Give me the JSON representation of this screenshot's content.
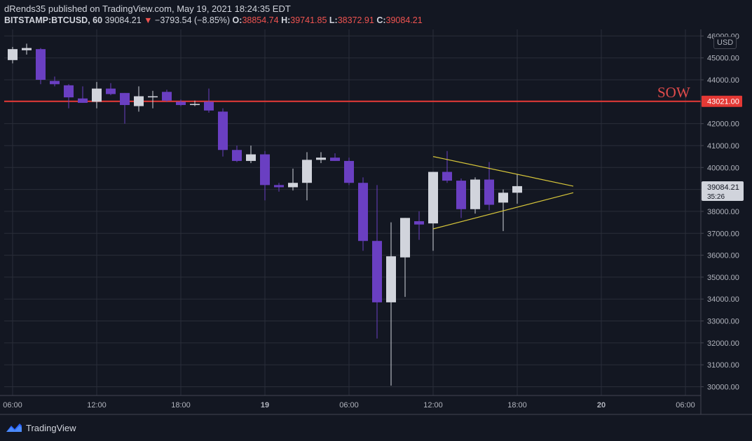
{
  "header": {
    "line1": "dRends35 published on TradingView.com, May 19, 2021 18:24:35 EDT",
    "symbol": "BITSTAMP:BTCUSD, 60",
    "last": "39084.21",
    "change_arrow": "▼",
    "change": "−3793.54 (−8.85%)",
    "o_label": "O:",
    "o_value": "38854.74",
    "h_label": "H:",
    "h_value": "39741.85",
    "l_label": "L:",
    "l_value": "38372.91",
    "c_label": "C:",
    "c_value": "39084.21"
  },
  "annotation": {
    "label": "SOW"
  },
  "currency_badge": "USD",
  "footer": {
    "logo_icon": "tradingview-logo-icon",
    "brand": "TradingView"
  },
  "colors": {
    "background": "#131722",
    "grid": "#2a2e39",
    "up_candle": "#d1d4dc",
    "down_candle": "#6a3fc2",
    "level_line": "#e53935",
    "triangle": "#d7c63a"
  },
  "chart_data": {
    "type": "candlestick",
    "title": "",
    "ylim": [
      29600,
      46300
    ],
    "y_ticks": [
      46000,
      45000,
      44000,
      43000,
      42000,
      41000,
      40000,
      39000,
      38000,
      37000,
      36000,
      35000,
      34000,
      33000,
      32000,
      31000,
      30000
    ],
    "y_tick_labels": [
      "46000.00",
      "45000.00",
      "44000.00",
      "43000.00",
      "42000.00",
      "41000.00",
      "40000.00",
      "39000.00",
      "38000.00",
      "37000.00",
      "36000.00",
      "35000.00",
      "34000.00",
      "33000.00",
      "32000.00",
      "31000.00",
      "30000.00"
    ],
    "x_ticks": [
      {
        "t": 0,
        "label": "06:00",
        "bold": false
      },
      {
        "t": 6,
        "label": "12:00",
        "bold": false
      },
      {
        "t": 12,
        "label": "18:00",
        "bold": false
      },
      {
        "t": 18,
        "label": "19",
        "bold": true
      },
      {
        "t": 24,
        "label": "06:00",
        "bold": false
      },
      {
        "t": 30,
        "label": "12:00",
        "bold": false
      },
      {
        "t": 36,
        "label": "18:00",
        "bold": false
      },
      {
        "t": 42,
        "label": "20",
        "bold": true
      },
      {
        "t": 48,
        "label": "06:00",
        "bold": false
      }
    ],
    "x_range": [
      -0.6,
      49.1
    ],
    "candles": [
      {
        "t": 0,
        "o": 44900,
        "h": 45500,
        "l": 44750,
        "c": 45400
      },
      {
        "t": 1,
        "o": 45350,
        "h": 45650,
        "l": 45150,
        "c": 45450
      },
      {
        "t": 2,
        "o": 45400,
        "h": 45450,
        "l": 43800,
        "c": 44000
      },
      {
        "t": 3,
        "o": 43950,
        "h": 44150,
        "l": 43700,
        "c": 43800
      },
      {
        "t": 4,
        "o": 43750,
        "h": 43800,
        "l": 42700,
        "c": 43200
      },
      {
        "t": 5,
        "o": 43150,
        "h": 43700,
        "l": 42950,
        "c": 42950
      },
      {
        "t": 6,
        "o": 43000,
        "h": 43900,
        "l": 42700,
        "c": 43600
      },
      {
        "t": 7,
        "o": 43600,
        "h": 43850,
        "l": 43300,
        "c": 43350
      },
      {
        "t": 8,
        "o": 43400,
        "h": 43400,
        "l": 42000,
        "c": 42850
      },
      {
        "t": 9,
        "o": 42800,
        "h": 43700,
        "l": 42550,
        "c": 43250
      },
      {
        "t": 10,
        "o": 43200,
        "h": 43500,
        "l": 42700,
        "c": 43250
      },
      {
        "t": 11,
        "o": 43450,
        "h": 43550,
        "l": 43000,
        "c": 43050
      },
      {
        "t": 12,
        "o": 43000,
        "h": 43100,
        "l": 42800,
        "c": 42850
      },
      {
        "t": 13,
        "o": 42850,
        "h": 43050,
        "l": 42800,
        "c": 42900
      },
      {
        "t": 14,
        "o": 43000,
        "h": 43600,
        "l": 42500,
        "c": 42600
      },
      {
        "t": 15,
        "o": 42550,
        "h": 42700,
        "l": 40500,
        "c": 40800
      },
      {
        "t": 16,
        "o": 40800,
        "h": 41000,
        "l": 40250,
        "c": 40300
      },
      {
        "t": 17,
        "o": 40300,
        "h": 41000,
        "l": 40200,
        "c": 40600
      },
      {
        "t": 18,
        "o": 40600,
        "h": 40750,
        "l": 38500,
        "c": 39200
      },
      {
        "t": 19,
        "o": 39200,
        "h": 39300,
        "l": 38900,
        "c": 39100
      },
      {
        "t": 20,
        "o": 39100,
        "h": 39950,
        "l": 38950,
        "c": 39300
      },
      {
        "t": 21,
        "o": 39300,
        "h": 40700,
        "l": 38500,
        "c": 40350
      },
      {
        "t": 22,
        "o": 40350,
        "h": 40700,
        "l": 40200,
        "c": 40450
      },
      {
        "t": 23,
        "o": 40450,
        "h": 40650,
        "l": 40300,
        "c": 40300
      },
      {
        "t": 24,
        "o": 40300,
        "h": 40450,
        "l": 39200,
        "c": 39300
      },
      {
        "t": 25,
        "o": 39300,
        "h": 39550,
        "l": 36200,
        "c": 36650
      },
      {
        "t": 26,
        "o": 36650,
        "h": 39200,
        "l": 32200,
        "c": 33850
      },
      {
        "t": 27,
        "o": 33850,
        "h": 37500,
        "l": 30050,
        "c": 35950
      },
      {
        "t": 28,
        "o": 35900,
        "h": 37700,
        "l": 34100,
        "c": 37700
      },
      {
        "t": 29,
        "o": 37550,
        "h": 38000,
        "l": 36700,
        "c": 37400
      },
      {
        "t": 30,
        "o": 37450,
        "h": 39800,
        "l": 36200,
        "c": 39800
      },
      {
        "t": 31,
        "o": 39800,
        "h": 40750,
        "l": 39300,
        "c": 39400
      },
      {
        "t": 32,
        "o": 39400,
        "h": 39500,
        "l": 37700,
        "c": 38100
      },
      {
        "t": 33,
        "o": 38100,
        "h": 39550,
        "l": 37900,
        "c": 39450
      },
      {
        "t": 34,
        "o": 39450,
        "h": 40250,
        "l": 38050,
        "c": 38300
      },
      {
        "t": 35,
        "o": 38400,
        "h": 39000,
        "l": 37100,
        "c": 38850
      },
      {
        "t": 36,
        "o": 38850,
        "h": 39700,
        "l": 38350,
        "c": 39150
      }
    ],
    "horizontal_line": {
      "price": 43021.0,
      "label": "43021.00"
    },
    "triangle": {
      "upper": [
        {
          "t": 30,
          "p": 40500
        },
        {
          "t": 40,
          "p": 39150
        }
      ],
      "lower": [
        {
          "t": 30,
          "p": 37200
        },
        {
          "t": 40,
          "p": 38850
        }
      ]
    },
    "last_price_label": {
      "price": 39084.21,
      "label": "39084.21",
      "countdown": "35:26"
    }
  }
}
